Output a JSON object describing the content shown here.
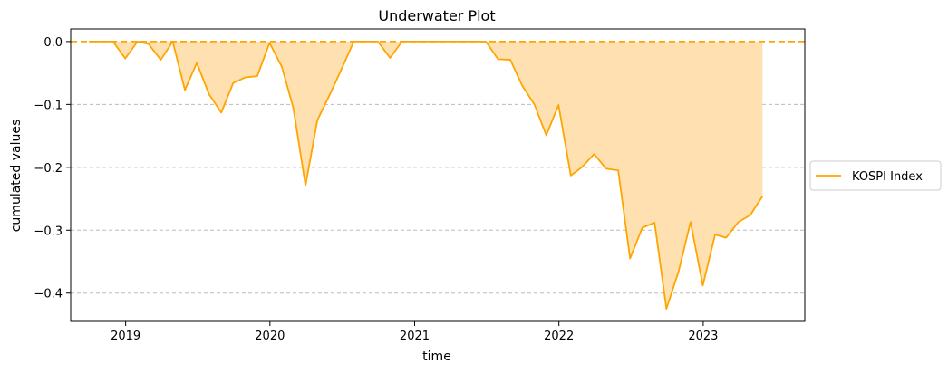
{
  "chart_data": {
    "type": "area",
    "title": "Underwater Plot",
    "xlabel": "time",
    "ylabel": "cumulated values",
    "xlim": [
      "2018-08-15",
      "2023-09-15"
    ],
    "ylim": [
      -0.445,
      0.02
    ],
    "x_ticks": [
      "2019",
      "2020",
      "2021",
      "2022",
      "2023"
    ],
    "x_tick_dates": [
      "2019-01-01",
      "2020-01-01",
      "2021-01-01",
      "2022-01-01",
      "2023-01-01"
    ],
    "y_ticks": [
      0.0,
      -0.1,
      -0.2,
      -0.3,
      -0.4
    ],
    "y_tick_labels": [
      "0.0",
      "−0.1",
      "−0.2",
      "−0.3",
      "−0.4"
    ],
    "grid": "y-dashed",
    "legend_position": "right-outside",
    "reference_line": {
      "y": 0.0,
      "style": "dashed",
      "color": "#ffa500"
    },
    "series": [
      {
        "name": "KOSPI Index",
        "color": "#ffa500",
        "fill_color": "#ffe0b0",
        "x": [
          "2018-09-30",
          "2018-10-31",
          "2018-11-30",
          "2018-12-31",
          "2019-01-31",
          "2019-02-28",
          "2019-03-31",
          "2019-04-30",
          "2019-05-31",
          "2019-06-30",
          "2019-07-31",
          "2019-08-31",
          "2019-09-30",
          "2019-10-31",
          "2019-11-30",
          "2019-12-31",
          "2020-01-31",
          "2020-02-29",
          "2020-03-31",
          "2020-04-30",
          "2020-05-31",
          "2020-06-30",
          "2020-07-31",
          "2020-08-31",
          "2020-09-30",
          "2020-10-31",
          "2020-11-30",
          "2020-12-31",
          "2021-01-31",
          "2021-02-28",
          "2021-03-31",
          "2021-04-30",
          "2021-05-31",
          "2021-06-30",
          "2021-07-31",
          "2021-08-31",
          "2021-09-30",
          "2021-10-31",
          "2021-11-30",
          "2021-12-31",
          "2022-01-31",
          "2022-02-28",
          "2022-03-31",
          "2022-04-30",
          "2022-05-31",
          "2022-06-30",
          "2022-07-31",
          "2022-08-31",
          "2022-09-30",
          "2022-10-31",
          "2022-11-30",
          "2022-12-31",
          "2023-01-31",
          "2023-02-28",
          "2023-03-31",
          "2023-04-30",
          "2023-05-31"
        ],
        "values": [
          0.0,
          0.0,
          0.0,
          -0.027,
          0.0,
          -0.004,
          -0.029,
          0.0,
          -0.077,
          -0.034,
          -0.084,
          -0.113,
          -0.066,
          -0.057,
          -0.055,
          -0.002,
          -0.04,
          -0.105,
          -0.229,
          -0.125,
          -0.085,
          -0.044,
          0.0,
          0.0,
          0.0,
          -0.026,
          0.0,
          0.0,
          0.0,
          0.0,
          0.0,
          0.0,
          0.0,
          0.0,
          -0.028,
          -0.029,
          -0.07,
          -0.1,
          -0.149,
          -0.101,
          -0.213,
          -0.2,
          -0.179,
          -0.202,
          -0.205,
          -0.345,
          -0.296,
          -0.288,
          -0.425,
          -0.365,
          -0.287,
          -0.388,
          -0.307,
          -0.312,
          -0.287,
          -0.276,
          -0.246
        ]
      }
    ]
  }
}
